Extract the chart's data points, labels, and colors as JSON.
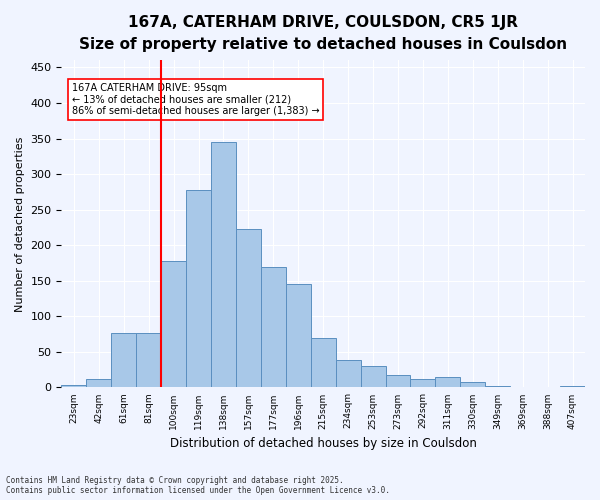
{
  "title": "167A, CATERHAM DRIVE, COULSDON, CR5 1JR",
  "subtitle": "Size of property relative to detached houses in Coulsdon",
  "xlabel": "Distribution of detached houses by size in Coulsdon",
  "ylabel": "Number of detached properties",
  "bar_labels": [
    "23sqm",
    "42sqm",
    "61sqm",
    "81sqm",
    "100sqm",
    "119sqm",
    "138sqm",
    "157sqm",
    "177sqm",
    "196sqm",
    "215sqm",
    "234sqm",
    "253sqm",
    "273sqm",
    "292sqm",
    "311sqm",
    "330sqm",
    "349sqm",
    "369sqm",
    "388sqm",
    "407sqm"
  ],
  "bar_heights": [
    3,
    12,
    76,
    76,
    178,
    278,
    345,
    223,
    170,
    146,
    70,
    38,
    30,
    17,
    12,
    15,
    7,
    2,
    1,
    1,
    2
  ],
  "bar_color": "#a8c8e8",
  "bar_edge_color": "#5a8fc0",
  "vline_x": 4.5,
  "vline_color": "red",
  "annotation_text": "167A CATERHAM DRIVE: 95sqm\n← 13% of detached houses are smaller (212)\n86% of semi-detached houses are larger (1,383) →",
  "annotation_box_color": "white",
  "annotation_box_edge_color": "red",
  "ylim": [
    0,
    460
  ],
  "yticks": [
    0,
    50,
    100,
    150,
    200,
    250,
    300,
    350,
    400,
    450
  ],
  "background_color": "#f0f4ff",
  "footer": "Contains HM Land Registry data © Crown copyright and database right 2025.\nContains public sector information licensed under the Open Government Licence v3.0.",
  "title_fontsize": 11,
  "subtitle_fontsize": 10
}
